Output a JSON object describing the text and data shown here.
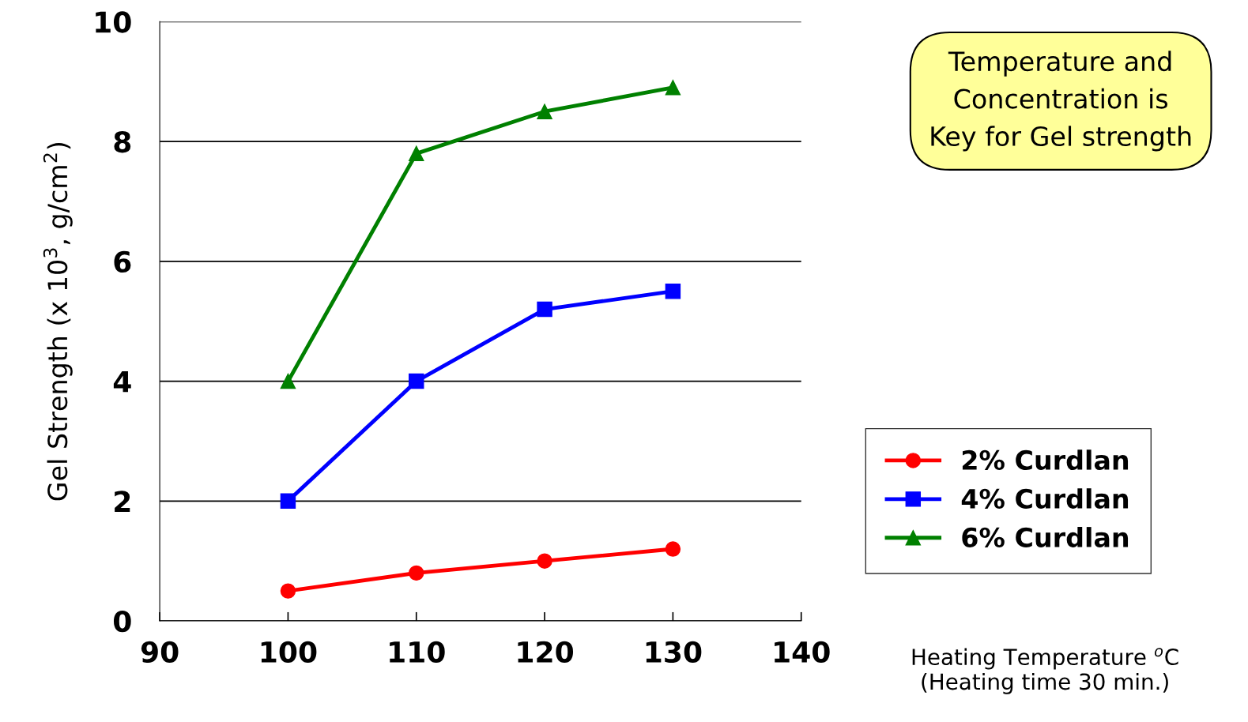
{
  "chart_data": {
    "type": "line",
    "x": [
      100,
      110,
      120,
      130
    ],
    "series": [
      {
        "name": "2% Curdlan",
        "color": "#ff0000",
        "marker": "circle",
        "values": [
          0.5,
          0.8,
          1.0,
          1.2
        ]
      },
      {
        "name": "4% Curdlan",
        "color": "#0000ff",
        "marker": "square",
        "values": [
          2.0,
          4.0,
          5.2,
          5.5
        ]
      },
      {
        "name": "6% Curdlan",
        "color": "#008000",
        "marker": "triangle",
        "values": [
          4.0,
          7.8,
          8.5,
          8.9
        ]
      }
    ],
    "xlim": [
      90,
      140
    ],
    "xticks": [
      90,
      100,
      110,
      120,
      130,
      140
    ],
    "ylim": [
      0,
      10
    ],
    "yticks": [
      0,
      2,
      4,
      6,
      8,
      10
    ],
    "xlabel": "Heating Temperature $^{o}$C\n(Heating time 30 min.)",
    "ylabel": "Gel Strength (x 10$^{3}$, g/cm$^{2}$)",
    "annotations": [
      "Temperature and\nConcentration is\nKey for Gel strength"
    ],
    "grid": "y",
    "legend": "right",
    "line_style": "solid"
  }
}
